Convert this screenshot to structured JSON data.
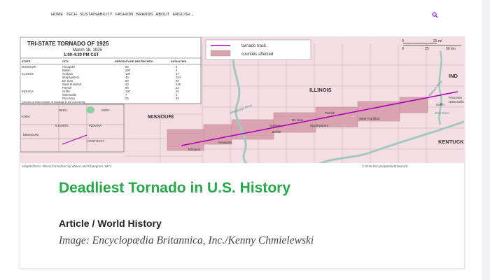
{
  "nav": {
    "items": [
      {
        "label": "HOME"
      },
      {
        "label": "TECH"
      },
      {
        "label": "SUSTAINABILITY"
      },
      {
        "label": "FASHION"
      },
      {
        "label": "BRANDS"
      },
      {
        "label": "ABOUT"
      },
      {
        "label": "ENGLISH"
      }
    ]
  },
  "icons": {
    "search": "search-icon",
    "language_dropdown": "chevron-down-icon"
  },
  "colors": {
    "headline": "#26a84a",
    "accent_search": "#a020f0"
  },
  "card": {
    "headline": "Deadliest Tornado in U.S. History",
    "category": "Article / World History",
    "credit": "Image: Encyclopædia Britannica, Inc./Kenny Chmielewski"
  },
  "map": {
    "table": {
      "title": "TRI-STATE TORNADO OF 1925",
      "date": "March 18, 1925",
      "time": "1:00-4:30 PM CST",
      "headers": [
        "STATE",
        "CITY",
        "PERCENTAGE DESTROYED*",
        "FATALITIES"
      ],
      "rows": [
        [
          "MISSOURI",
          "Annapolis",
          "90",
          "4"
        ],
        [
          "",
          "Biehle",
          "100",
          "4"
        ],
        [
          "ILLINOIS",
          "Gorham",
          "100",
          "37"
        ],
        [
          "",
          "Murphysboro",
          "40",
          "234"
        ],
        [
          "",
          "De Soto",
          "90",
          "69"
        ],
        [
          "",
          "West Frankfort",
          "20",
          "148"
        ],
        [
          "",
          "Parrish",
          "90",
          "22"
        ],
        [
          "INDIANA",
          "Griffin",
          "100",
          "25"
        ],
        [
          "",
          "Owensville",
          "7",
          "4"
        ],
        [
          "",
          "Princeton",
          "25",
          "45"
        ]
      ],
      "footnote": "*percent of total number of buildings in the community"
    },
    "legend": {
      "track": "tornado track",
      "counties": "counties affected"
    },
    "states": [
      "MISSOURI",
      "ILLINOIS",
      "IND",
      "KENTUCKY"
    ],
    "rivers": [
      "Mississippi River",
      "Wabash River",
      "Ohio River"
    ],
    "towns": [
      "Ellington",
      "Annapolis",
      "Biehle",
      "De Soto",
      "Gorham",
      "Murphysboro",
      "Parrish",
      "West Frankfort",
      "Griffin",
      "Princeton",
      "Owensville"
    ],
    "inset_states": [
      "WISC.",
      "MICH.",
      "IOWA",
      "ILLINOIS",
      "INDIANA",
      "MISSOURI",
      "KENTUCKY"
    ],
    "scale": {
      "labels": [
        "0",
        "25 mi",
        "0",
        "25",
        "50 km"
      ]
    },
    "source": "Adapted from: Illinois Tornadoes by Wilson and Changnon, 1971",
    "copyright": "© 2015 Encyclopædia Britannica"
  }
}
